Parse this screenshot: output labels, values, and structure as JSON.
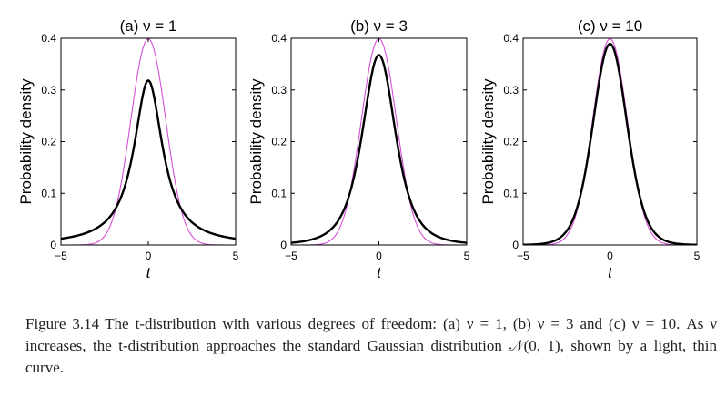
{
  "chart_data": [
    {
      "type": "line",
      "title": "(a) ν = 1",
      "xlabel": "t",
      "ylabel": "Probability density",
      "xlim": [
        -5,
        5
      ],
      "ylim": [
        0,
        0.4
      ],
      "xticks": [
        "−5",
        "0",
        "5"
      ],
      "yticks": [
        "0",
        "0.1",
        "0.2",
        "0.3",
        "0.4"
      ],
      "nu": 1,
      "series": [
        {
          "style": "thick black",
          "color": "#000000",
          "x": [
            -5,
            -4,
            -3,
            -2,
            -1,
            0,
            1,
            2,
            3,
            4,
            5
          ],
          "y": [
            0.0122,
            0.0187,
            0.0318,
            0.0637,
            0.1592,
            0.3183,
            0.1592,
            0.0637,
            0.0318,
            0.0187,
            0.0122
          ]
        },
        {
          "style": "thin magenta",
          "color": "#d64fd6",
          "x": [
            -5,
            -4,
            -3,
            -2,
            -1,
            0,
            1,
            2,
            3,
            4,
            5
          ],
          "y": [
            0.0,
            0.0001,
            0.0044,
            0.054,
            0.242,
            0.3989,
            0.242,
            0.054,
            0.0044,
            0.0001,
            0.0
          ]
        }
      ]
    },
    {
      "type": "line",
      "title": "(b) ν = 3",
      "xlabel": "t",
      "ylabel": "Probability density",
      "xlim": [
        -5,
        5
      ],
      "ylim": [
        0,
        0.4
      ],
      "xticks": [
        "−5",
        "0",
        "5"
      ],
      "yticks": [
        "0",
        "0.1",
        "0.2",
        "0.3",
        "0.4"
      ],
      "nu": 3,
      "series": [
        {
          "style": "thick black",
          "color": "#000000",
          "x": [
            -5,
            -4,
            -3,
            -2,
            -1,
            0,
            1,
            2,
            3,
            4,
            5
          ],
          "y": [
            0.0042,
            0.0092,
            0.023,
            0.0675,
            0.2067,
            0.3676,
            0.2067,
            0.0675,
            0.023,
            0.0092,
            0.0042
          ]
        },
        {
          "style": "thin magenta",
          "color": "#d64fd6",
          "x": [
            -5,
            -4,
            -3,
            -2,
            -1,
            0,
            1,
            2,
            3,
            4,
            5
          ],
          "y": [
            0.0,
            0.0001,
            0.0044,
            0.054,
            0.242,
            0.3989,
            0.242,
            0.054,
            0.0044,
            0.0001,
            0.0
          ]
        }
      ]
    },
    {
      "type": "line",
      "title": "(c) ν = 10",
      "xlabel": "t",
      "ylabel": "Probability density",
      "xlim": [
        -5,
        5
      ],
      "ylim": [
        0,
        0.4
      ],
      "xticks": [
        "−5",
        "0",
        "5"
      ],
      "yticks": [
        "0",
        "0.1",
        "0.2",
        "0.3",
        "0.4"
      ],
      "nu": 10,
      "series": [
        {
          "style": "thick black",
          "color": "#000000",
          "x": [
            -5,
            -4,
            -3,
            -2,
            -1,
            0,
            1,
            2,
            3,
            4,
            5
          ],
          "y": [
            0.0004,
            0.002,
            0.0114,
            0.0611,
            0.2304,
            0.3891,
            0.2304,
            0.0611,
            0.0114,
            0.002,
            0.0004
          ]
        },
        {
          "style": "thin magenta",
          "color": "#d64fd6",
          "x": [
            -5,
            -4,
            -3,
            -2,
            -1,
            0,
            1,
            2,
            3,
            4,
            5
          ],
          "y": [
            0.0,
            0.0001,
            0.0044,
            0.054,
            0.242,
            0.3989,
            0.242,
            0.054,
            0.0044,
            0.0001,
            0.0
          ]
        }
      ]
    }
  ],
  "caption": {
    "label": "Figure 3.14",
    "text": "The t-distribution with various degrees of freedom: (a) ν = 1, (b) ν = 3 and (c) ν = 10. As ν increases, the t-distribution approaches the standard Gaussian distribution 𝒩(0, 1), shown by a light, thin curve."
  },
  "colors": {
    "student_t": "#000000",
    "gaussian": "#d64fd6",
    "axes": "#000000"
  }
}
